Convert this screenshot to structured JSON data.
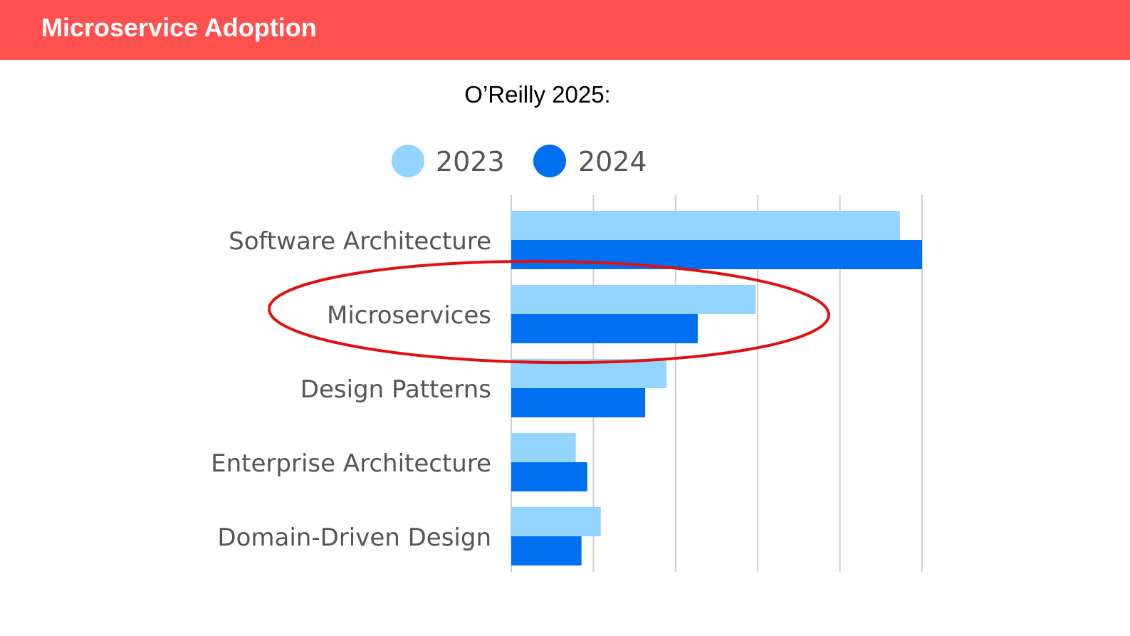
{
  "header": {
    "title": "Microservice Adoption"
  },
  "subtitle": "O’Reilly 2025:",
  "colors": {
    "header_bg": "#ff5050",
    "series_2023": "#94d5ff",
    "series_2024": "#0070f0",
    "highlight": "#e01010",
    "grid": "#cfcfcf"
  },
  "chart_data": {
    "type": "bar",
    "orientation": "horizontal",
    "categories": [
      "Software Architecture",
      "Microservices",
      "Design Patterns",
      "Enterprise Architecture",
      "Domain-Driven Design"
    ],
    "series": [
      {
        "name": "2023",
        "values": [
          94.6,
          59.5,
          37.8,
          15.7,
          21.8
        ]
      },
      {
        "name": "2024",
        "values": [
          100,
          45.4,
          32.6,
          18.5,
          17.1
        ]
      }
    ],
    "xlim": [
      0,
      100
    ],
    "grid": true,
    "tick_labels_shown": false,
    "legend_position": "top-center",
    "highlighted_category": "Microservices"
  }
}
